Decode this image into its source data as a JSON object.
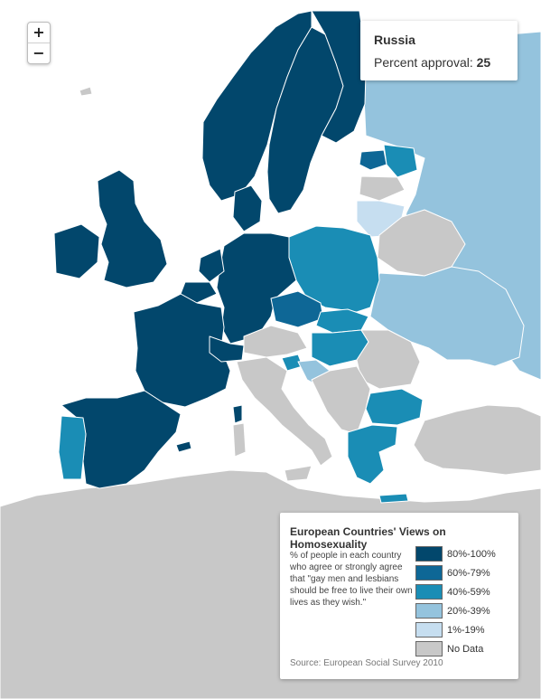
{
  "colors": {
    "sea": "#ffffff",
    "border": "#ffffff",
    "band_80_100": "#02476c",
    "band_60_79": "#0e6796",
    "band_40_59": "#1a8db5",
    "band_20_39": "#94c3dd",
    "band_1_19": "#c6def0",
    "no_data": "#c8c8c8"
  },
  "zoom_control": {
    "in_label": "+",
    "out_label": "−"
  },
  "tooltip": {
    "country": "Russia",
    "metric_label": "Percent approval:",
    "value": "25"
  },
  "legend": {
    "title": "European Countries' Views on Homosexuality",
    "description": "% of people in each country who agree or strongly agree that \"gay men and lesbians should be free to live their own lives as they wish.\"",
    "items": [
      {
        "label": "80%-100%",
        "color": "#02476c"
      },
      {
        "label": "60%-79%",
        "color": "#0e6796"
      },
      {
        "label": "40%-59%",
        "color": "#1a8db5"
      },
      {
        "label": "20%-39%",
        "color": "#94c3dd"
      },
      {
        "label": "1%-19%",
        "color": "#c6def0"
      },
      {
        "label": "No Data",
        "color": "#c8c8c8"
      }
    ],
    "source": "Source: European Social Survey 2010"
  }
}
